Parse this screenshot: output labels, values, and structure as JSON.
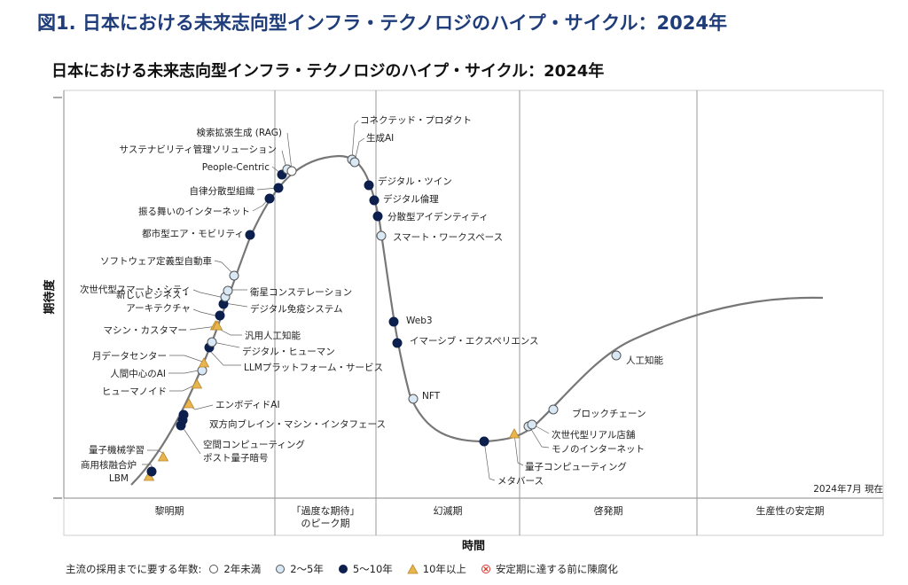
{
  "figure_title": "図1. 日本における未来志向型インフラ・テクノロジのハイプ・サイクル：2024年",
  "chart_data": {
    "type": "scatter",
    "title": "日本における未来志向型インフラ・テクノロジのハイプ・サイクル：2024年",
    "xlabel": "時間",
    "ylabel": "期待度",
    "date_note": "2024年7月 現在",
    "phases": [
      "黎明期",
      "「過度な期待」のピーク期",
      "幻滅期",
      "啓発期",
      "生産性の安定期"
    ],
    "legend_caption": "主流の採用までに要する年数:",
    "legend": [
      {
        "key": "lt2",
        "label": "2年未満"
      },
      {
        "key": "2to5",
        "label": "2〜5年"
      },
      {
        "key": "5to10",
        "label": "5〜10年"
      },
      {
        "key": "gt10",
        "label": "10年以上"
      },
      {
        "key": "obsolete",
        "label": "安定期に達する前に陳腐化"
      }
    ],
    "colors": {
      "curve": "#777777",
      "dark": "#0c1f4d",
      "light": "#d9e8f5",
      "white": "#ffffff",
      "gold": "#e8b64c",
      "obsolete": "#d9342b",
      "divider": "#999999"
    },
    "technologies": [
      {
        "name": "LBM",
        "category": "gt10"
      },
      {
        "name": "商用核融合炉",
        "category": "5to10"
      },
      {
        "name": "量子機械学習",
        "category": "gt10"
      },
      {
        "name": "ポスト量子暗号",
        "category": "5to10"
      },
      {
        "name": "空間コンピューティング",
        "category": "5to10"
      },
      {
        "name": "双方向ブレイン・マシン・インタフェース",
        "category": "5to10"
      },
      {
        "name": "エンボディドAI",
        "category": "gt10"
      },
      {
        "name": "ヒューマノイド",
        "category": "gt10"
      },
      {
        "name": "人間中心のAI",
        "category": "2to5"
      },
      {
        "name": "月データセンター",
        "category": "gt10"
      },
      {
        "name": "LLMプラットフォーム・サービス",
        "category": "5to10"
      },
      {
        "name": "デジタル・ヒューマン",
        "category": "2to5"
      },
      {
        "name": "汎用人工知能",
        "category": "gt10"
      },
      {
        "name": "マシン・カスタマー",
        "category": "gt10"
      },
      {
        "name": "新しいビジネス・アーキテクチャ",
        "category": "5to10"
      },
      {
        "name": "デジタル免疫システム",
        "category": "5to10"
      },
      {
        "name": "次世代型スマート・シティ",
        "category": "2to5"
      },
      {
        "name": "衛星コンステレーション",
        "category": "2to5"
      },
      {
        "name": "ソフトウェア定義型自動車",
        "category": "2to5"
      },
      {
        "name": "都市型エア・モビリティ",
        "category": "5to10"
      },
      {
        "name": "振る舞いのインターネット",
        "category": "5to10"
      },
      {
        "name": "自律分散型組織",
        "category": "5to10"
      },
      {
        "name": "People-Centric",
        "category": "5to10"
      },
      {
        "name": "サステナビリティ管理ソリューション",
        "category": "2to5"
      },
      {
        "name": "検索拡張生成 (RAG)",
        "category": "lt2"
      },
      {
        "name": "コネクテッド・プロダクト",
        "category": "2to5"
      },
      {
        "name": "生成AI",
        "category": "2to5"
      },
      {
        "name": "デジタル・ツイン",
        "category": "5to10"
      },
      {
        "name": "デジタル倫理",
        "category": "5to10"
      },
      {
        "name": "分散型アイデンティティ",
        "category": "5to10"
      },
      {
        "name": "スマート・ワークスペース",
        "category": "2to5"
      },
      {
        "name": "Web3",
        "category": "5to10"
      },
      {
        "name": "イマーシブ・エクスペリエンス",
        "category": "5to10"
      },
      {
        "name": "NFT",
        "category": "2to5"
      },
      {
        "name": "メタバース",
        "category": "5to10"
      },
      {
        "name": "量子コンピューティング",
        "category": "gt10"
      },
      {
        "name": "モノのインターネット",
        "category": "2to5"
      },
      {
        "name": "次世代型リアル店舗",
        "category": "2to5"
      },
      {
        "name": "ブロックチェーン",
        "category": "2to5"
      },
      {
        "name": "人工知能",
        "category": "2to5"
      }
    ]
  }
}
